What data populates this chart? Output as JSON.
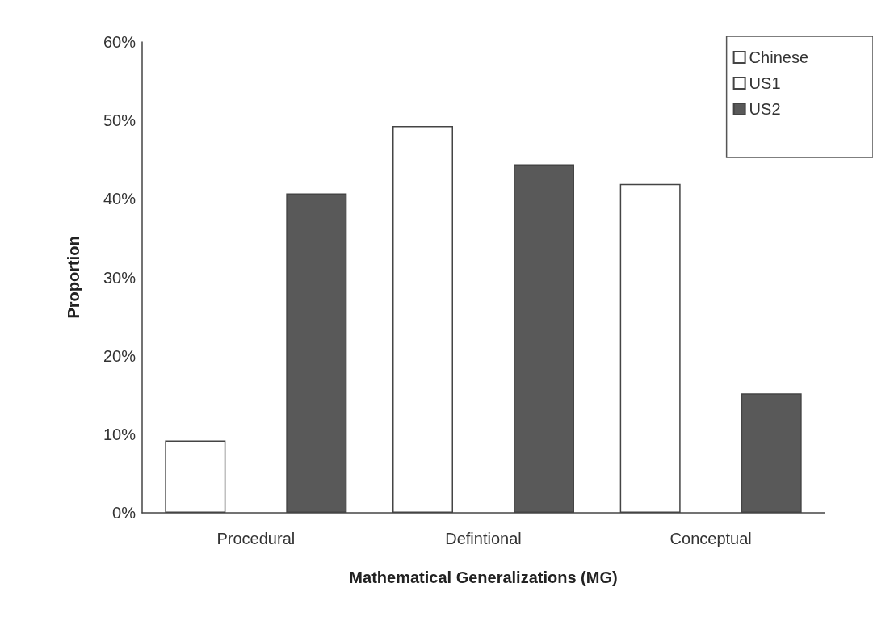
{
  "chart_data": {
    "type": "bar",
    "xlabel": "Mathematical Generalizations (MG)",
    "ylabel": "Proportion",
    "categories": [
      "Procedural",
      "Defintional",
      "Conceptual"
    ],
    "series": [
      {
        "name": "Chinese",
        "color": "#ffffff",
        "values": [
          9.2,
          49.3,
          41.9
        ]
      },
      {
        "name": "US1",
        "color": "#ffffff",
        "values": [
          null,
          null,
          null
        ]
      },
      {
        "name": "US2",
        "color": "#595959",
        "values": [
          40.7,
          44.4,
          15.2
        ]
      }
    ],
    "ylim": [
      0,
      60
    ],
    "yticks": [
      {
        "value": 0,
        "label": "0%"
      },
      {
        "value": 10,
        "label": "10%"
      },
      {
        "value": 20,
        "label": "20%"
      },
      {
        "value": 30,
        "label": "30%"
      },
      {
        "value": 40,
        "label": "40%"
      },
      {
        "value": 50,
        "label": "50%"
      },
      {
        "value": 60,
        "label": "60%"
      }
    ],
    "grid": false,
    "legend": "top right"
  }
}
